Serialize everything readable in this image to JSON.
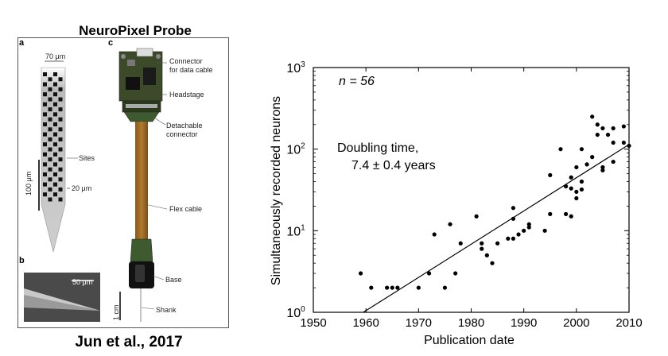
{
  "figure": {
    "left_title": "NeuroPixel Probe",
    "left_caption": "Jun et al., 2017",
    "probe": {
      "panel_a": "a",
      "panel_b": "b",
      "panel_c": "c",
      "width_label": "70 μm",
      "sites_label": "Sites",
      "scale_100": "100 μm",
      "scale_20": "20 μm",
      "sem_scale": "50 μm",
      "connector": "Connector\nfor data cable",
      "headstage": "Headstage",
      "detachable": "Detachable\nconnector",
      "flex": "Flex cable",
      "base": "Base",
      "shank": "Shank",
      "scale_1cm": "1 cm"
    }
  },
  "chart_data": {
    "type": "scatter",
    "xlabel": "Publication date",
    "ylabel": "Simultaneously recorded neurons",
    "xlim": [
      1950,
      2010
    ],
    "ylim": [
      1,
      1000
    ],
    "yscale": "log",
    "x_ticks": [
      1950,
      1960,
      1970,
      1980,
      1990,
      2000,
      2010
    ],
    "y_ticks": [
      1,
      10,
      100,
      1000
    ],
    "y_tick_labels": [
      [
        "10",
        "0"
      ],
      [
        "10",
        "1"
      ],
      [
        "10",
        "2"
      ],
      [
        "10",
        "3"
      ]
    ],
    "annotations": {
      "n": "n = 56",
      "doubling_line1": "Doubling time,",
      "doubling_line2": "7.4 ± 0.4 years"
    },
    "fit_line": {
      "x": [
        1959.5,
        2010
      ],
      "y": [
        1,
        114
      ]
    },
    "points": [
      {
        "x": 1959,
        "y": 3
      },
      {
        "x": 1961,
        "y": 2
      },
      {
        "x": 1964,
        "y": 2
      },
      {
        "x": 1965,
        "y": 2
      },
      {
        "x": 1966,
        "y": 2
      },
      {
        "x": 1970,
        "y": 2
      },
      {
        "x": 1972,
        "y": 3
      },
      {
        "x": 1973,
        "y": 9
      },
      {
        "x": 1975,
        "y": 2
      },
      {
        "x": 1976,
        "y": 12
      },
      {
        "x": 1977,
        "y": 3
      },
      {
        "x": 1978,
        "y": 7
      },
      {
        "x": 1981,
        "y": 15
      },
      {
        "x": 1982,
        "y": 7
      },
      {
        "x": 1982,
        "y": 6
      },
      {
        "x": 1983,
        "y": 5
      },
      {
        "x": 1984,
        "y": 4
      },
      {
        "x": 1985,
        "y": 7
      },
      {
        "x": 1987,
        "y": 8
      },
      {
        "x": 1988,
        "y": 8
      },
      {
        "x": 1988,
        "y": 14
      },
      {
        "x": 1988,
        "y": 19
      },
      {
        "x": 1989,
        "y": 9
      },
      {
        "x": 1990,
        "y": 10
      },
      {
        "x": 1991,
        "y": 12
      },
      {
        "x": 1991,
        "y": 11
      },
      {
        "x": 1994,
        "y": 10
      },
      {
        "x": 1995,
        "y": 16
      },
      {
        "x": 1995,
        "y": 48
      },
      {
        "x": 1997,
        "y": 100
      },
      {
        "x": 1998,
        "y": 16
      },
      {
        "x": 1998,
        "y": 35
      },
      {
        "x": 1999,
        "y": 15
      },
      {
        "x": 1999,
        "y": 33
      },
      {
        "x": 1999,
        "y": 45
      },
      {
        "x": 2000,
        "y": 25
      },
      {
        "x": 2000,
        "y": 30
      },
      {
        "x": 2000,
        "y": 60
      },
      {
        "x": 2001,
        "y": 32
      },
      {
        "x": 2001,
        "y": 40
      },
      {
        "x": 2001,
        "y": 100
      },
      {
        "x": 2002,
        "y": 65
      },
      {
        "x": 2003,
        "y": 80
      },
      {
        "x": 2003,
        "y": 250
      },
      {
        "x": 2004,
        "y": 150
      },
      {
        "x": 2004,
        "y": 200
      },
      {
        "x": 2005,
        "y": 55
      },
      {
        "x": 2005,
        "y": 60
      },
      {
        "x": 2005,
        "y": 180
      },
      {
        "x": 2006,
        "y": 150
      },
      {
        "x": 2007,
        "y": 70
      },
      {
        "x": 2007,
        "y": 120
      },
      {
        "x": 2007,
        "y": 180
      },
      {
        "x": 2009,
        "y": 120
      },
      {
        "x": 2009,
        "y": 190
      },
      {
        "x": 2010,
        "y": 110
      }
    ]
  }
}
